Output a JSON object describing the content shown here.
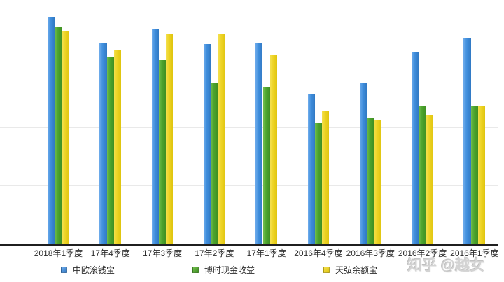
{
  "watermark": "知乎 @越女",
  "legend": [
    {
      "label": "中欧滚钱宝",
      "x": 87
    },
    {
      "label": "博时现金收益",
      "x": 275
    },
    {
      "label": "天弘余额宝",
      "x": 462
    }
  ],
  "chart_data": {
    "type": "bar",
    "title": "",
    "xlabel": "",
    "ylabel": "",
    "categories": [
      "2018年1季度",
      "17年4季度",
      "17年3季度",
      "17年2季度",
      "17年1季度",
      "2016年4季度",
      "2016年3季度",
      "2016年2季度",
      "2016年1季度"
    ],
    "series": [
      {
        "name": "中欧滚钱宝",
        "color": "#3f8edc",
        "color_light": "#6facec",
        "color_dark": "#3179c4",
        "values": [
          3.88,
          3.44,
          3.66,
          3.41,
          3.44,
          2.56,
          2.75,
          3.27,
          3.51
        ]
      },
      {
        "name": "博时现金收益",
        "color": "#4ca42e",
        "color_light": "#72be4e",
        "color_dark": "#3f8f22",
        "values": [
          3.7,
          3.19,
          3.14,
          2.75,
          2.67,
          2.07,
          2.15,
          2.35,
          2.37
        ]
      },
      {
        "name": "天弘余额宝",
        "color": "#edd324",
        "color_light": "#f4e04e",
        "color_dark": "#dfc40f",
        "values": [
          3.63,
          3.31,
          3.59,
          3.59,
          3.22,
          2.28,
          2.13,
          2.21,
          2.37
        ]
      }
    ],
    "ylim": [
      0,
      4
    ],
    "gridlines": [
      1,
      2,
      3,
      4
    ],
    "grid": true,
    "y_axis_labels_visible": false,
    "legend_position": "bottom"
  }
}
